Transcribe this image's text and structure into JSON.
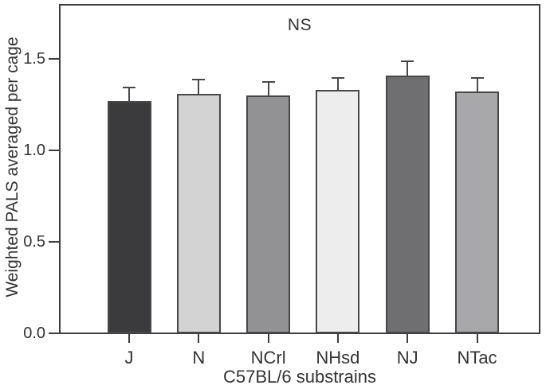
{
  "figure": {
    "annotation": "NS"
  },
  "chart_data": {
    "type": "bar",
    "title": "",
    "annotation": "NS",
    "xlabel": "C57BL/6 substrains",
    "ylabel": "Weighted PALS averaged per cage",
    "categories": [
      "J",
      "N",
      "NCrl",
      "NHsd",
      "NJ",
      "NTac"
    ],
    "values": [
      1.27,
      1.31,
      1.3,
      1.33,
      1.41,
      1.32
    ],
    "errors_upper": [
      0.08,
      0.08,
      0.08,
      0.07,
      0.08,
      0.08
    ],
    "error_bars": "upper_only",
    "bar_colors": [
      "#3b3b3d",
      "#d3d3d4",
      "#929294",
      "#ededee",
      "#6f6f71",
      "#a8a8aa"
    ],
    "bar_border_color": "#48484a",
    "error_bar_color": "#48484a",
    "axis_color": "#3e3e40",
    "text_color": "#333333",
    "background_color": "#ffffff",
    "yticks": [
      0.0,
      0.5,
      1.0,
      1.5
    ],
    "ytick_labels": [
      "0.0",
      "0.5",
      "1.0",
      "1.5"
    ],
    "ylim": [
      0,
      1.8
    ],
    "grid": false,
    "legend": null
  }
}
